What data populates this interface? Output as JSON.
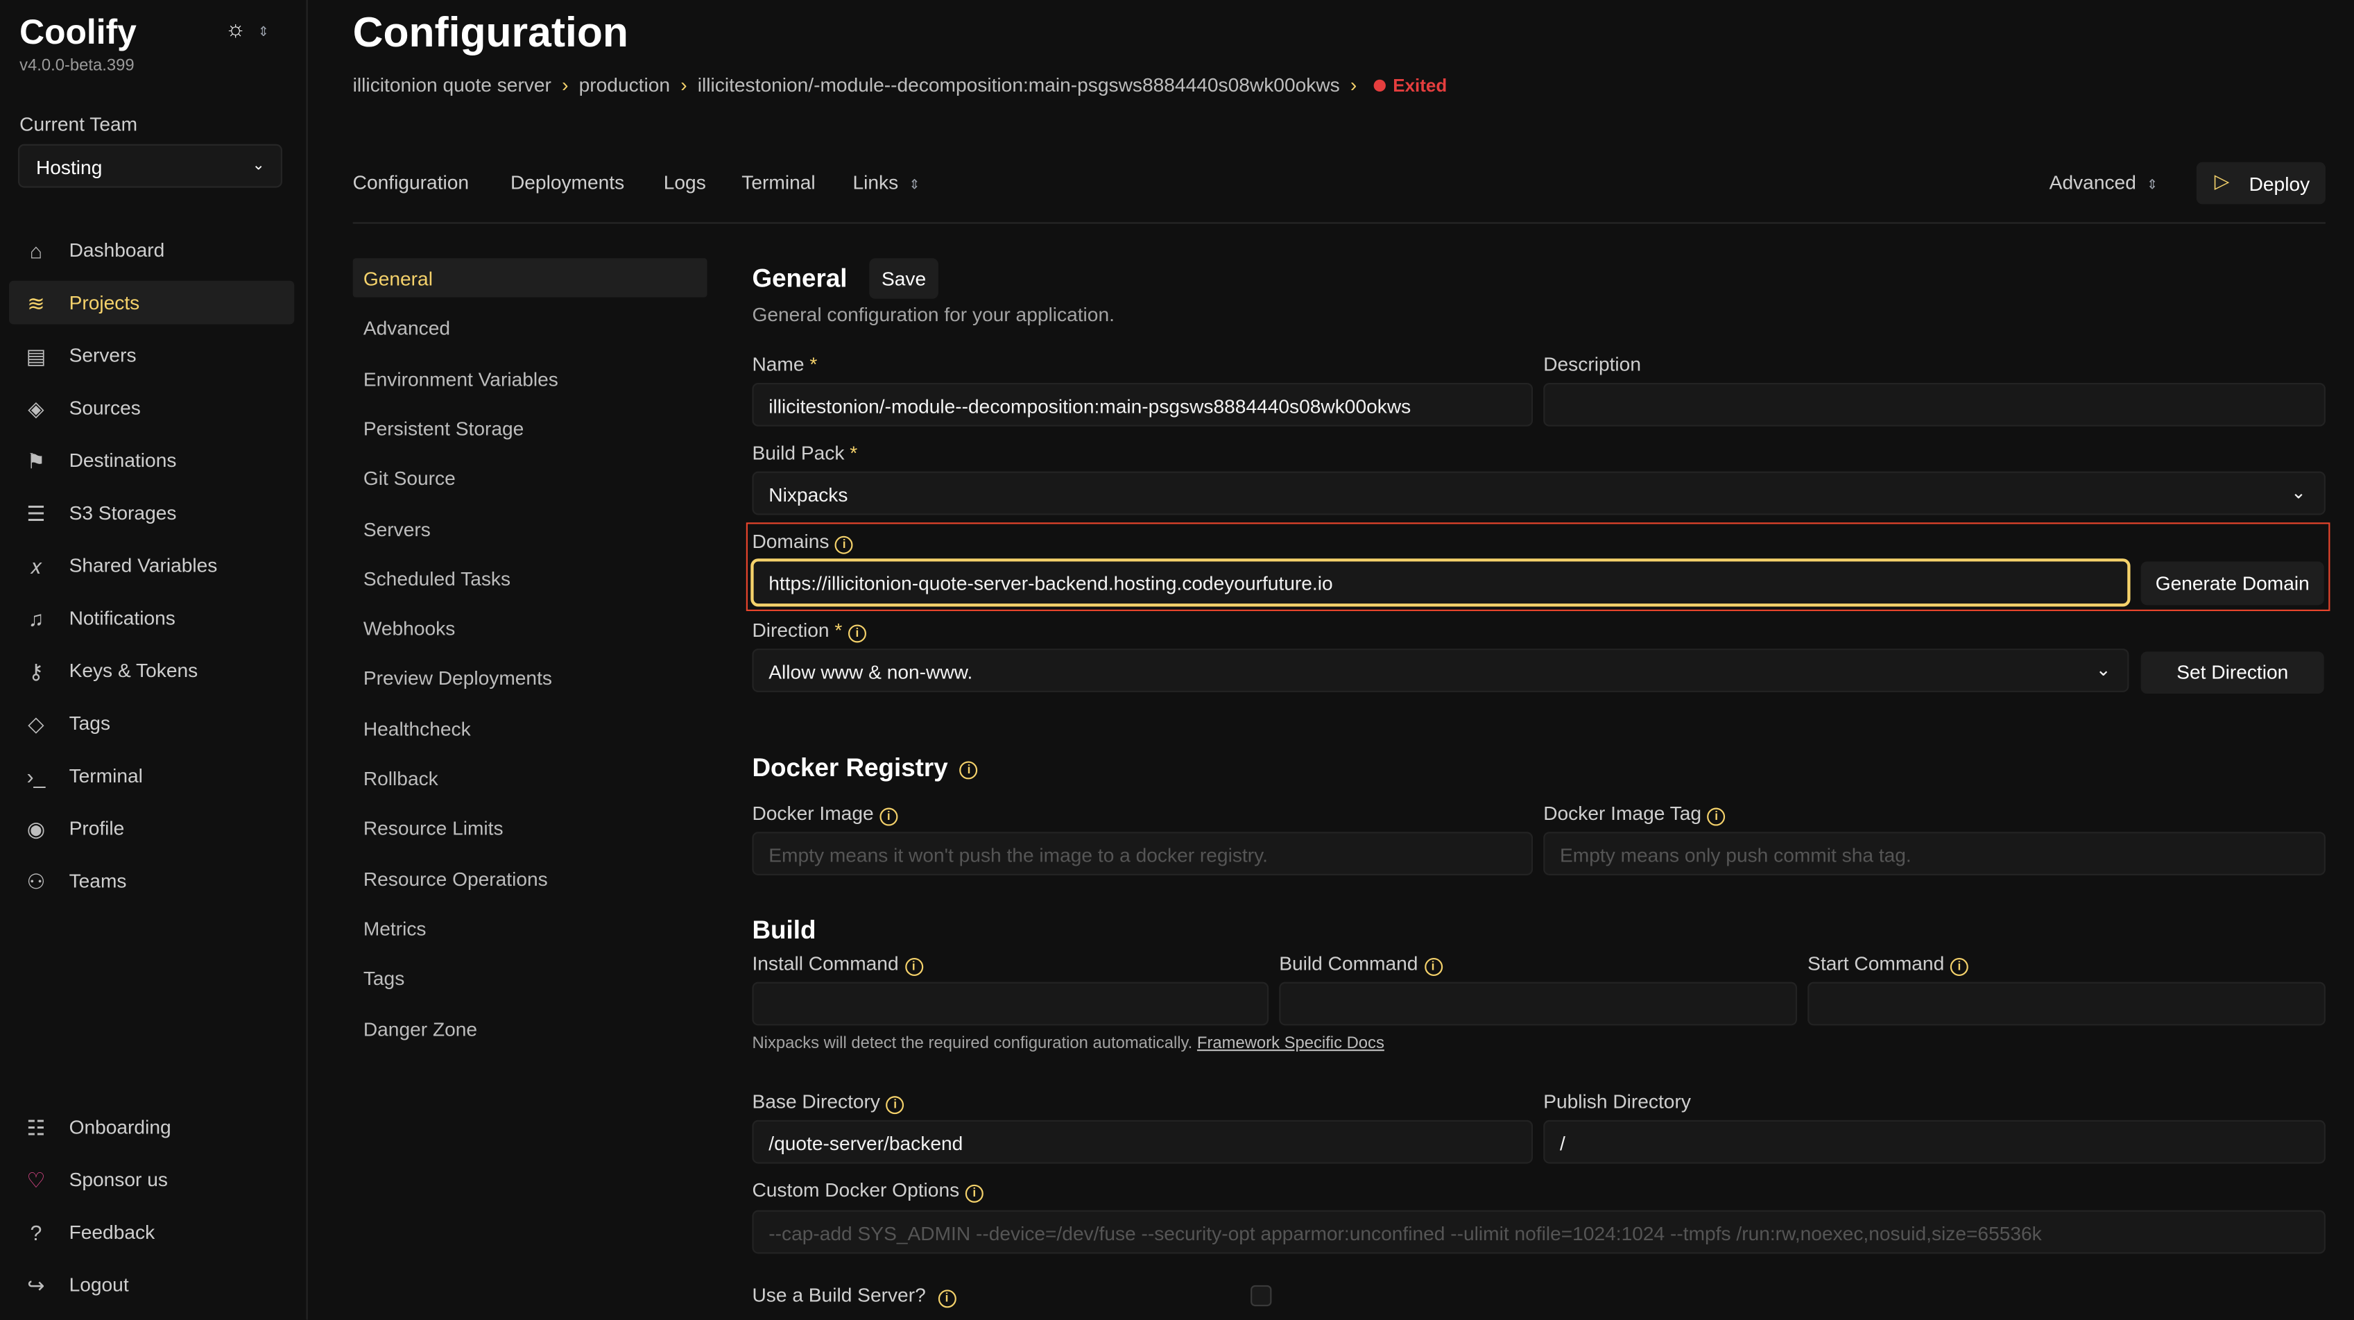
{
  "app": {
    "name": "Coolify",
    "version": "v4.0.0-beta.399"
  },
  "team": {
    "label": "Current Team",
    "value": "Hosting"
  },
  "sidebar": {
    "items": [
      {
        "label": "Dashboard",
        "icon": "home-icon"
      },
      {
        "label": "Projects",
        "icon": "layers-icon",
        "active": true
      },
      {
        "label": "Servers",
        "icon": "server-icon"
      },
      {
        "label": "Sources",
        "icon": "git-icon"
      },
      {
        "label": "Destinations",
        "icon": "destination-icon"
      },
      {
        "label": "S3 Storages",
        "icon": "database-icon"
      },
      {
        "label": "Shared Variables",
        "icon": "variable-icon"
      },
      {
        "label": "Notifications",
        "icon": "bell-icon"
      },
      {
        "label": "Keys & Tokens",
        "icon": "key-icon"
      },
      {
        "label": "Tags",
        "icon": "tag-icon"
      },
      {
        "label": "Terminal",
        "icon": "terminal-icon"
      },
      {
        "label": "Profile",
        "icon": "user-icon"
      },
      {
        "label": "Teams",
        "icon": "users-icon"
      }
    ],
    "bottom": [
      {
        "label": "Onboarding",
        "icon": "list-icon"
      },
      {
        "label": "Sponsor us",
        "icon": "heart-icon"
      },
      {
        "label": "Feedback",
        "icon": "help-icon"
      },
      {
        "label": "Logout",
        "icon": "logout-icon"
      }
    ]
  },
  "header": {
    "title": "Configuration",
    "breadcrumbs": [
      "illicitonion quote server",
      "production",
      "illicitestonion/-module--decomposition:main-psgsws8884440s08wk00okws"
    ],
    "status": "Exited"
  },
  "tabs": [
    "Configuration",
    "Deployments",
    "Logs",
    "Terminal",
    "Links"
  ],
  "actions": {
    "advanced": "Advanced",
    "deploy": "Deploy"
  },
  "subnav": [
    "General",
    "Advanced",
    "Environment Variables",
    "Persistent Storage",
    "Git Source",
    "Servers",
    "Scheduled Tasks",
    "Webhooks",
    "Preview Deployments",
    "Healthcheck",
    "Rollback",
    "Resource Limits",
    "Resource Operations",
    "Metrics",
    "Tags",
    "Danger Zone"
  ],
  "general": {
    "title": "General",
    "save": "Save",
    "subtitle": "General configuration for your application.",
    "name_label": "Name",
    "name_value": "illicitestonion/-module--decomposition:main-psgsws8884440s08wk00okws",
    "description_label": "Description",
    "description_value": "",
    "buildpack_label": "Build Pack",
    "buildpack_value": "Nixpacks",
    "domains_label": "Domains",
    "domains_value": "https://illicitonion-quote-server-backend.hosting.codeyourfuture.io",
    "generate_domain": "Generate Domain",
    "direction_label": "Direction",
    "direction_value": "Allow www & non-www.",
    "set_direction": "Set Direction"
  },
  "docker": {
    "title": "Docker Registry",
    "image_label": "Docker Image",
    "image_placeholder": "Empty means it won't push the image to a docker registry.",
    "tag_label": "Docker Image Tag",
    "tag_placeholder": "Empty means only push commit sha tag."
  },
  "build": {
    "title": "Build",
    "install_label": "Install Command",
    "build_label": "Build Command",
    "start_label": "Start Command",
    "hint": "Nixpacks will detect the required configuration automatically.",
    "hint_link": "Framework Specific Docs",
    "base_label": "Base Directory",
    "base_value": "/quote-server/backend",
    "publish_label": "Publish Directory",
    "publish_value": "/",
    "docker_opts_label": "Custom Docker Options",
    "docker_opts_placeholder": "--cap-add SYS_ADMIN --device=/dev/fuse --security-opt apparmor:unconfined --ulimit nofile=1024:1024 --tmpfs /run:rw,noexec,nosuid,size=65536k",
    "build_server_label": "Use a Build Server?",
    "build_server_checked": false
  },
  "colors": {
    "accent": "#f5d26b",
    "danger": "#e53e3e",
    "highlight": "#e8452c",
    "background": "#101010"
  }
}
